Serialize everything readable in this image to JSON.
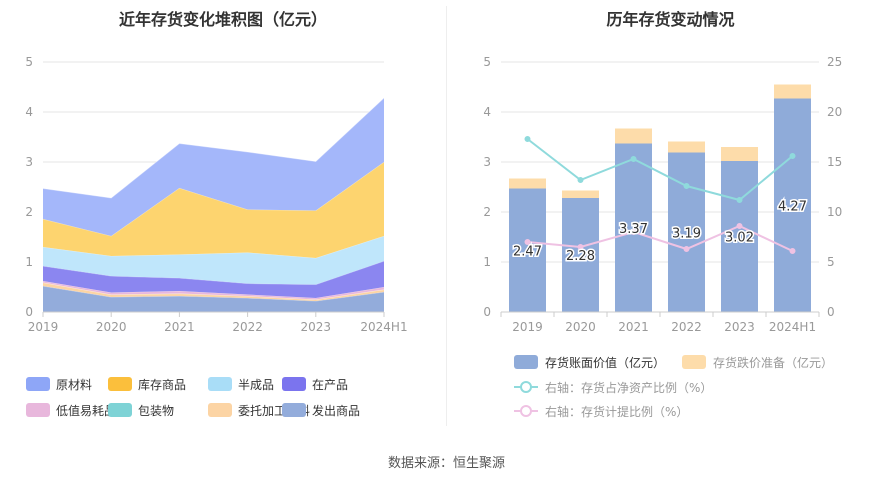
{
  "footer": {
    "source": "数据来源：恒生聚源"
  },
  "chart_data": [
    {
      "type": "area",
      "stacked": true,
      "title": "近年存货变化堆积图（亿元）",
      "categories": [
        "2019",
        "2020",
        "2021",
        "2022",
        "2023",
        "2024H1"
      ],
      "ylim": [
        0,
        5
      ],
      "yticks": [
        "0",
        "1",
        "2",
        "3",
        "4",
        "5"
      ],
      "series": [
        {
          "name": "发出商品",
          "color": "#93acdb",
          "values": [
            0.52,
            0.3,
            0.32,
            0.28,
            0.22,
            0.4
          ]
        },
        {
          "name": "委托加工材料",
          "color": "#fcd4a4",
          "values": [
            0.07,
            0.05,
            0.05,
            0.04,
            0.03,
            0.05
          ]
        },
        {
          "name": "包装物",
          "color": "#7ed3d6",
          "values": [
            0.0,
            0.0,
            0.0,
            0.0,
            0.0,
            0.0
          ]
        },
        {
          "name": "低值易耗品",
          "color": "#e8b7dc",
          "values": [
            0.03,
            0.04,
            0.05,
            0.03,
            0.03,
            0.05
          ]
        },
        {
          "name": "在产品",
          "color": "#8b86f0",
          "values": [
            0.3,
            0.33,
            0.26,
            0.22,
            0.27,
            0.52
          ]
        },
        {
          "name": "半成品",
          "color": "#bfe6fb",
          "values": [
            0.38,
            0.4,
            0.47,
            0.62,
            0.53,
            0.5
          ]
        },
        {
          "name": "库存商品",
          "color": "#fdd46f",
          "values": [
            0.56,
            0.4,
            1.33,
            0.86,
            0.95,
            1.48
          ]
        },
        {
          "name": "原材料",
          "color": "#a4b7fa",
          "values": [
            0.61,
            0.76,
            0.89,
            1.15,
            0.98,
            1.28
          ]
        }
      ],
      "legend": {
        "position": "bottom",
        "items": [
          {
            "name": "原材料",
            "color": "#8ea6f7"
          },
          {
            "name": "库存商品",
            "color": "#fbbf3c"
          },
          {
            "name": "半成品",
            "color": "#a9ddf7"
          },
          {
            "name": "在产品",
            "color": "#7b74ee"
          },
          {
            "name": "低值易耗品",
            "color": "#e8b7dc"
          },
          {
            "name": "包装物",
            "color": "#7ed3d6"
          },
          {
            "name": "委托加工材料",
            "color": "#fcd4a4"
          },
          {
            "name": "发出商品",
            "color": "#93acdb"
          }
        ]
      }
    },
    {
      "type": "bar",
      "title": "历年存货变动情况",
      "categories": [
        "2019",
        "2020",
        "2021",
        "2022",
        "2023",
        "2024H1"
      ],
      "ylim": [
        0,
        5
      ],
      "yticks": [
        "0",
        "1",
        "2",
        "3",
        "4",
        "5"
      ],
      "y2lim": [
        0,
        25
      ],
      "y2ticks": [
        "0",
        "5",
        "10",
        "15",
        "20",
        "25"
      ],
      "bars": [
        {
          "name": "存货账面价值（亿元）",
          "color": "#8fabd9",
          "values": [
            2.47,
            2.28,
            3.37,
            3.19,
            3.02,
            4.27
          ],
          "labels": [
            "2.47",
            "2.28",
            "3.37",
            "3.19",
            "3.02",
            "4.27"
          ]
        },
        {
          "name": "存货跌价准备（亿元）",
          "color": "#fddcaa",
          "values": [
            0.2,
            0.15,
            0.3,
            0.22,
            0.28,
            0.28
          ]
        }
      ],
      "lines": [
        {
          "name": "右轴：存货占净资产比例（%）",
          "color": "#8fdadc",
          "axis": "right",
          "values": [
            17.3,
            13.2,
            15.3,
            12.6,
            11.2,
            15.6
          ]
        },
        {
          "name": "右轴：存货计提比例（%）",
          "color": "#efc2e3",
          "axis": "right",
          "values": [
            7.0,
            6.5,
            8.0,
            6.3,
            8.6,
            6.1
          ]
        }
      ]
    }
  ]
}
